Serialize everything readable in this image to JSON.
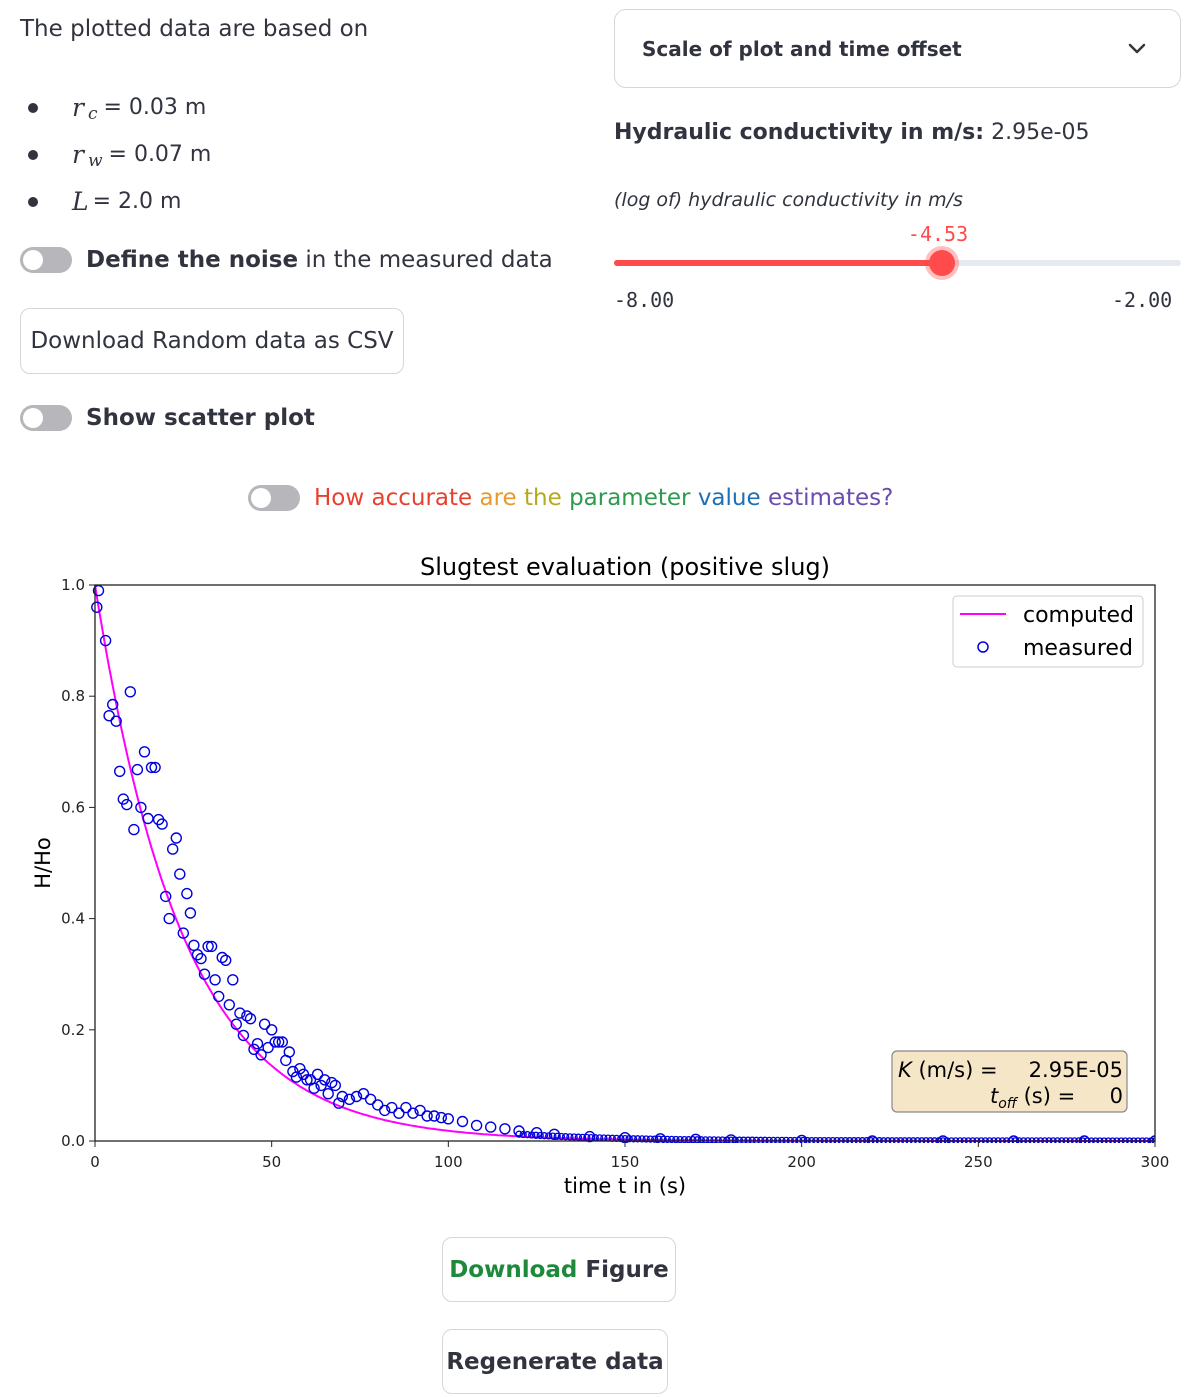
{
  "intro": {
    "text": "The plotted data are based on",
    "params": [
      {
        "symbol": "r",
        "sub": "c",
        "value": "= 0.03 m"
      },
      {
        "symbol": "r",
        "sub": "w",
        "value": "= 0.07 m"
      },
      {
        "symbol": "L",
        "sub": "",
        "value": "= 2.0 m"
      }
    ]
  },
  "noise_toggle": {
    "bold": "Define the noise",
    "rest": " in the measured data",
    "checked": false
  },
  "download_csv_button": "Download Random data as CSV",
  "scatter_toggle": {
    "label": "Show scatter plot",
    "checked": false
  },
  "accuracy_toggle": {
    "checked": false,
    "segments": [
      {
        "text": "How accurate ",
        "color": "#e8402f"
      },
      {
        "text": "are ",
        "color": "#e89a2a"
      },
      {
        "text": "the ",
        "color": "#b5a821"
      },
      {
        "text": "parameter ",
        "color": "#2e9a4e"
      },
      {
        "text": "value ",
        "color": "#1f6fb5"
      },
      {
        "text": "estimates?",
        "color": "#6a4bb0"
      }
    ]
  },
  "expander": {
    "label": "Scale of plot and time offset",
    "icon": "chevron-down-icon"
  },
  "conductivity": {
    "label": "Hydraulic conductivity in m/s:",
    "value": "2.95e-05"
  },
  "slider": {
    "label": "(log of) hydraulic conductivity in m/s",
    "value": "-4.53",
    "min": "-8.00",
    "max": "-2.00",
    "value_num": -4.53,
    "min_num": -8.0,
    "max_num": -2.0,
    "accent": "#ff4b4b"
  },
  "buttons": {
    "download_figure": {
      "green": "Download",
      "rest": " Figure",
      "green_color": "#1d8a3b"
    },
    "regenerate": "Regenerate data"
  },
  "chart_data": {
    "type": "line",
    "title": "Slugtest evaluation (positive slug)",
    "xlabel": "time t in (s)",
    "ylabel": "H/Ho",
    "xlim": [
      0,
      300
    ],
    "ylim": [
      0,
      1.0
    ],
    "xticks": [
      "0",
      "50",
      "100",
      "150",
      "200",
      "250",
      "300"
    ],
    "yticks": [
      "0.0",
      "0.2",
      "0.4",
      "0.6",
      "0.8",
      "1.0"
    ],
    "grid": false,
    "legend": {
      "position": "upper right",
      "entries": [
        "computed",
        "measured"
      ]
    },
    "annotation": {
      "lines": [
        "K (m/s) =   2.95E-05",
        "t_off (s) =   0"
      ],
      "K_label": "K (m/s) =",
      "K_value": "2.95E-05",
      "toff_label": "(s) =",
      "toff_value": "0"
    },
    "series": [
      {
        "name": "computed",
        "style": "line",
        "color": "#ff00ff",
        "x": [
          0,
          5,
          10,
          15,
          20,
          25,
          30,
          35,
          40,
          50,
          60,
          70,
          80,
          90,
          100,
          110,
          120,
          140,
          160,
          200,
          250,
          300
        ],
        "values": [
          1.0,
          0.82,
          0.67,
          0.55,
          0.45,
          0.37,
          0.3,
          0.25,
          0.2,
          0.135,
          0.09,
          0.06,
          0.041,
          0.027,
          0.018,
          0.012,
          0.008,
          0.0037,
          0.0017,
          0.0003,
          0.0,
          0.0
        ]
      },
      {
        "name": "measured",
        "style": "scatter",
        "color": "#0000dd",
        "x": [
          0.5,
          1,
          3,
          4,
          5,
          6,
          7,
          8,
          9,
          10,
          11,
          12,
          13,
          14,
          15,
          16,
          17,
          18,
          19,
          20,
          21,
          22,
          23,
          24,
          25,
          26,
          27,
          28,
          29,
          30,
          31,
          32,
          33,
          34,
          35,
          36,
          37,
          38,
          39,
          40,
          41,
          42,
          43,
          44,
          45,
          46,
          47,
          48,
          49,
          50,
          51,
          52,
          53,
          54,
          55,
          56,
          57,
          58,
          59,
          60,
          61,
          62,
          63,
          64,
          65,
          66,
          67,
          68,
          69,
          70,
          72,
          74,
          76,
          78,
          80,
          82,
          84,
          86,
          88,
          90,
          92,
          94,
          96,
          98,
          100,
          104,
          108,
          112,
          116,
          120,
          125,
          130,
          140,
          150,
          160,
          170,
          180,
          200,
          220,
          240,
          260,
          280,
          300
        ],
        "values": [
          0.96,
          0.99,
          0.9,
          0.765,
          0.785,
          0.755,
          0.665,
          0.615,
          0.605,
          0.808,
          0.56,
          0.668,
          0.6,
          0.7,
          0.58,
          0.672,
          0.672,
          0.578,
          0.57,
          0.44,
          0.4,
          0.525,
          0.545,
          0.48,
          0.374,
          0.445,
          0.41,
          0.352,
          0.335,
          0.328,
          0.3,
          0.35,
          0.35,
          0.29,
          0.26,
          0.33,
          0.325,
          0.245,
          0.29,
          0.21,
          0.23,
          0.19,
          0.225,
          0.22,
          0.165,
          0.175,
          0.155,
          0.21,
          0.168,
          0.2,
          0.178,
          0.178,
          0.178,
          0.145,
          0.16,
          0.125,
          0.115,
          0.13,
          0.12,
          0.11,
          0.11,
          0.095,
          0.12,
          0.1,
          0.11,
          0.085,
          0.105,
          0.1,
          0.068,
          0.08,
          0.075,
          0.08,
          0.085,
          0.075,
          0.065,
          0.055,
          0.06,
          0.05,
          0.06,
          0.05,
          0.055,
          0.045,
          0.045,
          0.042,
          0.04,
          0.035,
          0.028,
          0.025,
          0.022,
          0.018,
          0.015,
          0.012,
          0.008,
          0.006,
          0.004,
          0.003,
          0.002,
          0.001,
          0.0,
          0.0,
          0.0,
          0.0,
          0.0
        ]
      }
    ]
  }
}
